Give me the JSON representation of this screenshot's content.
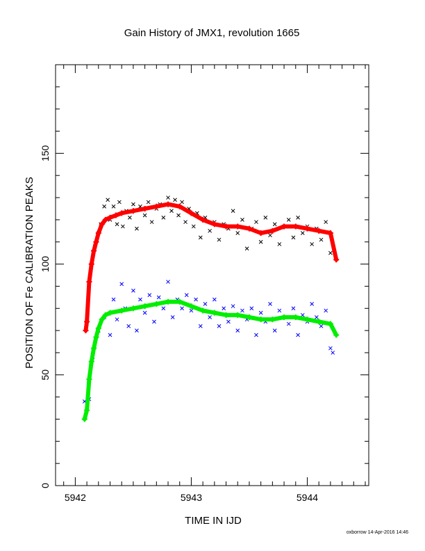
{
  "chart_data": {
    "type": "scatter",
    "title": "Gain History of JMX1, revolution 1665",
    "xlabel": "TIME IN IJD",
    "ylabel": "POSITION OF Fe CALIBRATION PEAKS",
    "xlim": [
      5941.83,
      5944.53
    ],
    "ylim": [
      0,
      190
    ],
    "x_ticks": [
      5942,
      5943,
      5944
    ],
    "y_ticks": [
      0,
      50,
      100,
      150
    ],
    "grid": false,
    "colors": {
      "raw_upper": "#000000",
      "fit_upper": "#ff0000",
      "raw_lower": "#0000ff",
      "fit_lower": "#00ee00"
    },
    "series": [
      {
        "marker": "x",
        "color": "raw_upper",
        "x": [
          5942.17,
          5942.2,
          5942.22,
          5942.25,
          5942.28,
          5942.3,
          5942.33,
          5942.36,
          5942.38,
          5942.41,
          5942.44,
          5942.47,
          5942.5,
          5942.53,
          5942.56,
          5942.6,
          5942.63,
          5942.66,
          5942.7,
          5942.73,
          5942.76,
          5942.8,
          5942.83,
          5942.86,
          5942.89,
          5942.92,
          5942.95,
          5942.98,
          5943.02,
          5943.05,
          5943.08,
          5943.12,
          5943.16,
          5943.2,
          5943.24,
          5943.28,
          5943.32,
          5943.36,
          5943.4,
          5943.44,
          5943.48,
          5943.52,
          5943.56,
          5943.6,
          5943.64,
          5943.68,
          5943.72,
          5943.76,
          5943.8,
          5943.84,
          5943.88,
          5943.92,
          5943.96,
          5944.0,
          5944.04,
          5944.08,
          5944.12,
          5944.16,
          5944.2
        ],
        "y": [
          108,
          114,
          118,
          126,
          129,
          120,
          126,
          118,
          128,
          117,
          124,
          121,
          127,
          116,
          126,
          122,
          128,
          119,
          125,
          127,
          121,
          130,
          124,
          129,
          122,
          128,
          119,
          125,
          117,
          123,
          112,
          121,
          115,
          119,
          111,
          118,
          116,
          124,
          114,
          120,
          107,
          116,
          119,
          110,
          121,
          113,
          118,
          109,
          117,
          120,
          112,
          121,
          114,
          117,
          109,
          116,
          111,
          119,
          105
        ]
      },
      {
        "marker": "+",
        "color": "fit_upper",
        "x": [
          5942.09,
          5942.1,
          5942.12,
          5942.14,
          5942.16,
          5942.18,
          5942.2,
          5942.23,
          5942.26,
          5942.3,
          5942.35,
          5942.4,
          5942.5,
          5942.6,
          5942.7,
          5942.8,
          5942.9,
          5943.0,
          5943.1,
          5943.2,
          5943.3,
          5943.4,
          5943.5,
          5943.6,
          5943.7,
          5943.8,
          5943.9,
          5944.0,
          5944.1,
          5944.2,
          5944.25
        ],
        "y": [
          70,
          74,
          92,
          100,
          106,
          110,
          114,
          118,
          120,
          121,
          122,
          123,
          124,
          125,
          126,
          127,
          126,
          123,
          120,
          118,
          117,
          117,
          116,
          114,
          115,
          117,
          117,
          116,
          115,
          114,
          102
        ]
      },
      {
        "marker": "x",
        "color": "raw_lower",
        "x": [
          5942.08,
          5942.12,
          5942.15,
          5942.2,
          5942.25,
          5942.3,
          5942.33,
          5942.36,
          5942.4,
          5942.43,
          5942.46,
          5942.5,
          5942.53,
          5942.56,
          5942.6,
          5942.64,
          5942.68,
          5942.72,
          5942.76,
          5942.8,
          5942.84,
          5942.88,
          5942.92,
          5942.96,
          5943.0,
          5943.04,
          5943.08,
          5943.12,
          5943.16,
          5943.2,
          5943.24,
          5943.28,
          5943.32,
          5943.36,
          5943.4,
          5943.44,
          5943.48,
          5943.52,
          5943.56,
          5943.6,
          5943.64,
          5943.68,
          5943.72,
          5943.76,
          5943.8,
          5943.84,
          5943.88,
          5943.92,
          5943.96,
          5944.0,
          5944.04,
          5944.08,
          5944.12,
          5944.16,
          5944.2,
          5944.22
        ],
        "y": [
          38,
          39,
          58,
          70,
          76,
          68,
          84,
          75,
          91,
          80,
          72,
          88,
          70,
          84,
          78,
          86,
          74,
          85,
          80,
          92,
          76,
          84,
          80,
          86,
          79,
          84,
          72,
          82,
          76,
          84,
          72,
          80,
          74,
          81,
          70,
          79,
          75,
          80,
          68,
          78,
          74,
          82,
          70,
          79,
          76,
          73,
          80,
          68,
          77,
          74,
          82,
          76,
          72,
          79,
          62,
          60
        ]
      },
      {
        "marker": "+",
        "color": "fit_lower",
        "x": [
          5942.08,
          5942.1,
          5942.12,
          5942.14,
          5942.16,
          5942.18,
          5942.2,
          5942.23,
          5942.26,
          5942.3,
          5942.4,
          5942.5,
          5942.6,
          5942.7,
          5942.8,
          5942.9,
          5943.0,
          5943.1,
          5943.2,
          5943.3,
          5943.4,
          5943.5,
          5943.6,
          5943.7,
          5943.8,
          5943.9,
          5944.0,
          5944.1,
          5944.2,
          5944.25
        ],
        "y": [
          30,
          34,
          48,
          56,
          62,
          67,
          71,
          75,
          77,
          78,
          79,
          80,
          81,
          82,
          83,
          83,
          81,
          79,
          78,
          77,
          77,
          76,
          75,
          75,
          76,
          76,
          75,
          74,
          73,
          68
        ]
      }
    ]
  },
  "footer": "oxborrow 14-Apr-2016 14:46"
}
